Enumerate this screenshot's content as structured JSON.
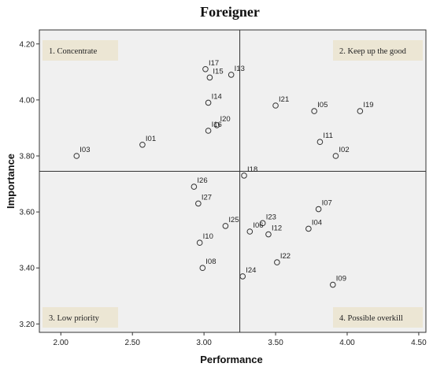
{
  "chart_data": {
    "type": "scatter",
    "title": "Foreigner",
    "xlabel": "Performance",
    "ylabel": "Importance",
    "xlim": [
      1.85,
      4.55
    ],
    "ylim": [
      3.17,
      4.25
    ],
    "xticks": [
      "2.00",
      "2.50",
      "3.00",
      "3.50",
      "4.00",
      "4.50"
    ],
    "yticks": [
      "3.20",
      "3.40",
      "3.60",
      "3.80",
      "4.00",
      "4.20"
    ],
    "xtick_values": [
      2.0,
      2.5,
      3.0,
      3.5,
      4.0,
      4.5
    ],
    "ytick_values": [
      3.2,
      3.4,
      3.6,
      3.8,
      4.0,
      4.2
    ],
    "reference_lines": {
      "x": 3.25,
      "y": 3.745
    },
    "grid": false,
    "quadrants": [
      {
        "label": "1. Concentrate",
        "position": "top-left"
      },
      {
        "label": "2. Keep up the good",
        "position": "top-right"
      },
      {
        "label": "3. Low priority",
        "position": "bottom-left"
      },
      {
        "label": "4. Possible overkill",
        "position": "bottom-right"
      }
    ],
    "points": [
      {
        "label": "I01",
        "x": 2.57,
        "y": 3.84
      },
      {
        "label": "I02",
        "x": 3.92,
        "y": 3.8
      },
      {
        "label": "I03",
        "x": 2.11,
        "y": 3.8
      },
      {
        "label": "I04",
        "x": 3.73,
        "y": 3.54
      },
      {
        "label": "I05",
        "x": 3.77,
        "y": 3.96
      },
      {
        "label": "I06",
        "x": 3.32,
        "y": 3.53
      },
      {
        "label": "I07",
        "x": 3.8,
        "y": 3.61
      },
      {
        "label": "I08",
        "x": 2.99,
        "y": 3.4
      },
      {
        "label": "I09",
        "x": 3.9,
        "y": 3.34
      },
      {
        "label": "I10",
        "x": 2.97,
        "y": 3.49
      },
      {
        "label": "I11",
        "x": 3.81,
        "y": 3.85
      },
      {
        "label": "I12",
        "x": 3.45,
        "y": 3.52
      },
      {
        "label": "I13",
        "x": 3.19,
        "y": 4.09
      },
      {
        "label": "I14",
        "x": 3.03,
        "y": 3.99
      },
      {
        "label": "I15",
        "x": 3.04,
        "y": 4.08
      },
      {
        "label": "I16",
        "x": 3.03,
        "y": 3.89
      },
      {
        "label": "I17",
        "x": 3.01,
        "y": 4.11
      },
      {
        "label": "I18",
        "x": 3.28,
        "y": 3.73
      },
      {
        "label": "I19",
        "x": 4.09,
        "y": 3.96
      },
      {
        "label": "I20",
        "x": 3.09,
        "y": 3.91
      },
      {
        "label": "I21",
        "x": 3.5,
        "y": 3.98
      },
      {
        "label": "I22",
        "x": 3.51,
        "y": 3.42
      },
      {
        "label": "I23",
        "x": 3.41,
        "y": 3.56
      },
      {
        "label": "I24",
        "x": 3.27,
        "y": 3.37
      },
      {
        "label": "I25",
        "x": 3.15,
        "y": 3.55
      },
      {
        "label": "I26",
        "x": 2.93,
        "y": 3.69
      },
      {
        "label": "I27",
        "x": 2.96,
        "y": 3.63
      }
    ]
  }
}
